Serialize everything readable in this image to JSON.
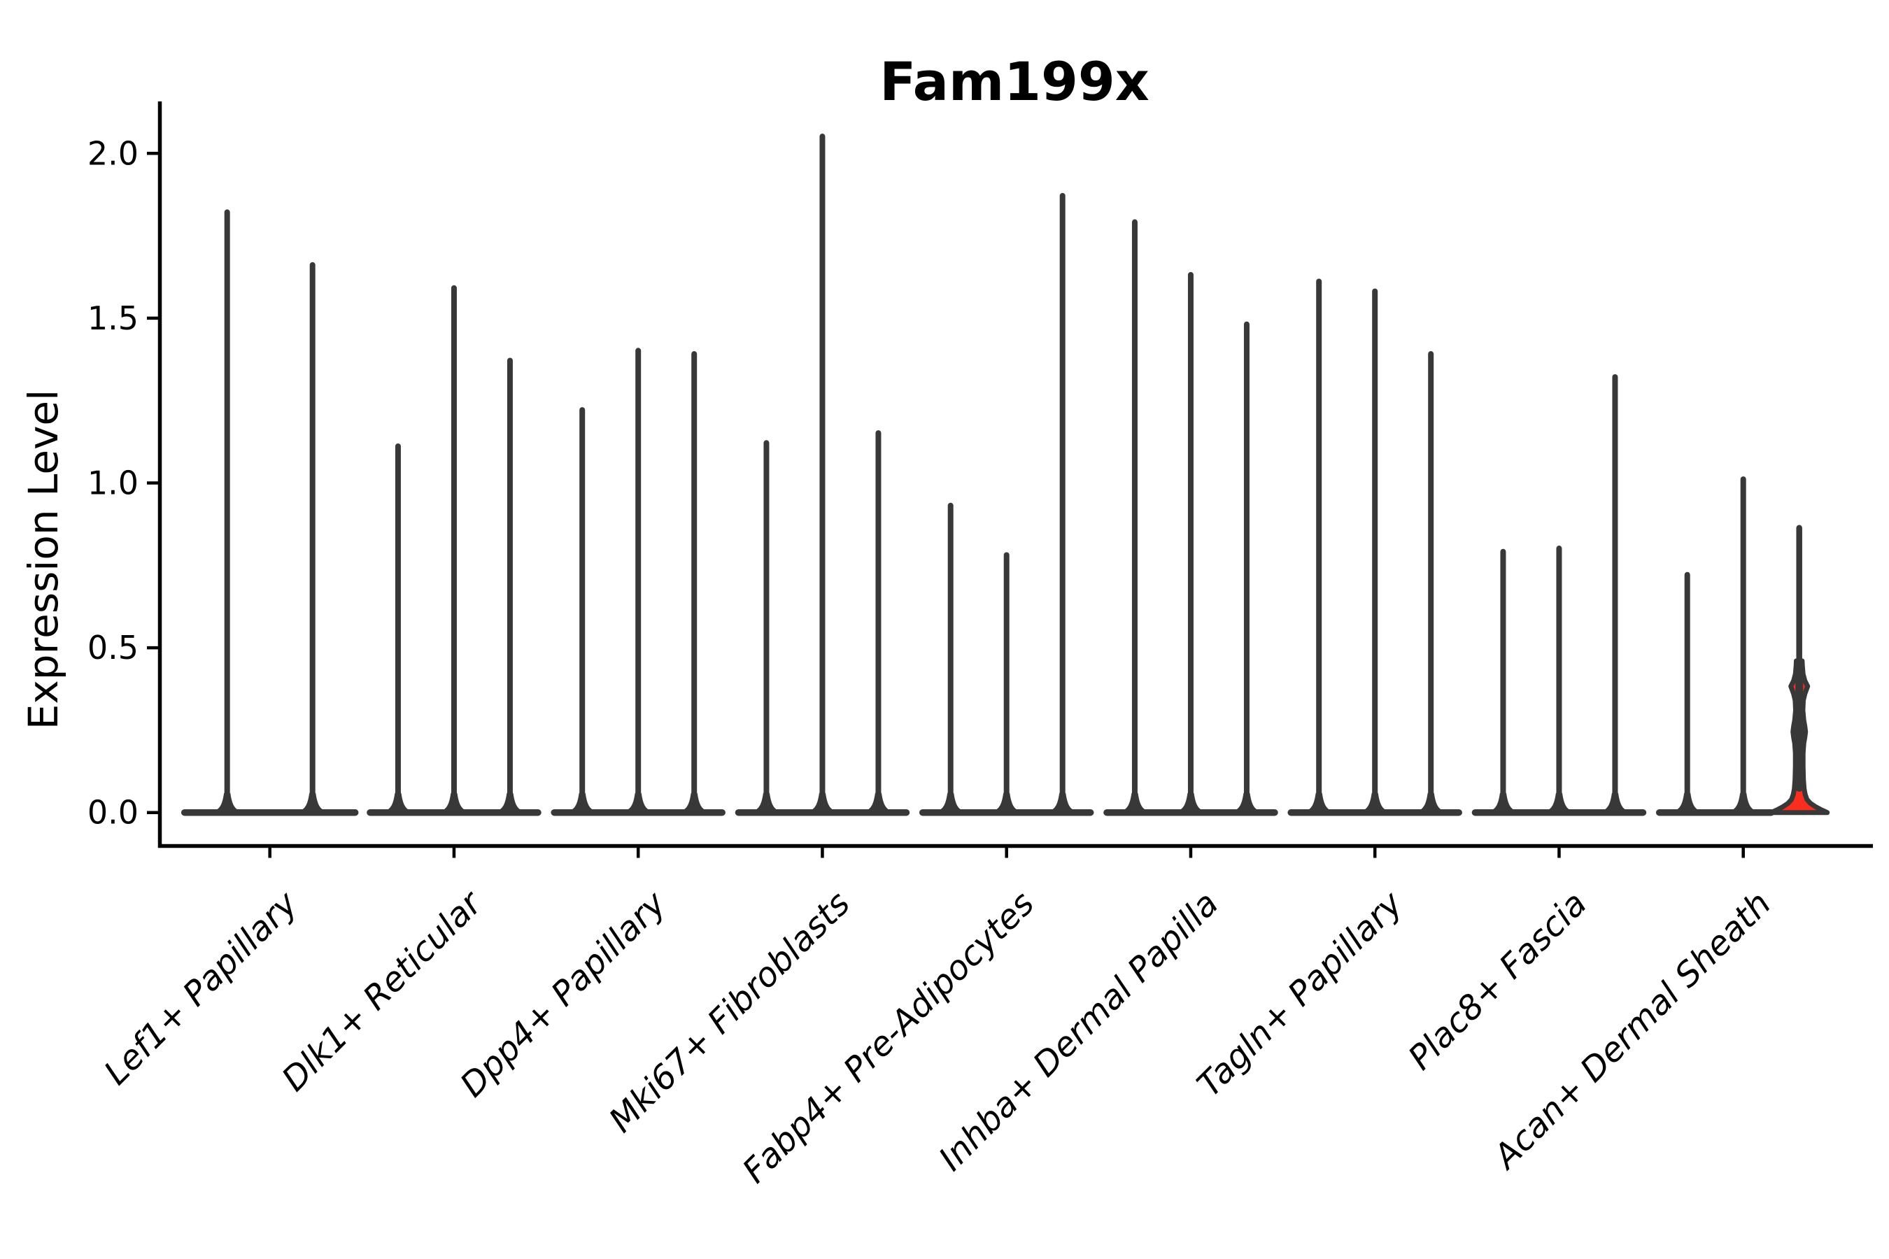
{
  "title": "Fam199x",
  "axes": {
    "ylabel": "Expression Level"
  },
  "chart_data": {
    "type": "violin",
    "title": "Fam199x",
    "xlabel": "",
    "ylabel": "Expression Level",
    "ylim": [
      -0.1,
      2.16
    ],
    "yticks": [
      0.0,
      0.5,
      1.0,
      1.5,
      2.0
    ],
    "grid": false,
    "legend": "none",
    "categories": [
      "Lef1+ Papillary",
      "Dlk1+ Reticular",
      "Dpp4+ Papillary",
      "Mki67+ Fibroblasts",
      "Fabp4+ Pre-Adipocytes",
      "Inhba+ Dermal Papilla",
      "Tagln+ Papillary",
      "Plac8+ Fascia",
      "Acan+ Dermal Sheath"
    ],
    "groups": [
      {
        "category": "Lef1+ Papillary",
        "violins": [
          {
            "peak": 1.83
          },
          {
            "peak": 1.67
          }
        ]
      },
      {
        "category": "Dlk1+ Reticular",
        "violins": [
          {
            "peak": 1.12
          },
          {
            "peak": 1.6
          },
          {
            "peak": 1.38
          }
        ]
      },
      {
        "category": "Dpp4+ Papillary",
        "violins": [
          {
            "peak": 1.23
          },
          {
            "peak": 1.41
          },
          {
            "peak": 1.4
          }
        ]
      },
      {
        "category": "Mki67+ Fibroblasts",
        "violins": [
          {
            "peak": 1.13
          },
          {
            "peak": 2.06
          },
          {
            "peak": 1.16
          }
        ]
      },
      {
        "category": "Fabp4+ Pre-Adipocytes",
        "violins": [
          {
            "peak": 0.94
          },
          {
            "peak": 0.79
          },
          {
            "peak": 1.88
          }
        ]
      },
      {
        "category": "Inhba+ Dermal Papilla",
        "violins": [
          {
            "peak": 1.8
          },
          {
            "peak": 1.64
          },
          {
            "peak": 1.49
          }
        ]
      },
      {
        "category": "Tagln+ Papillary",
        "violins": [
          {
            "peak": 1.62
          },
          {
            "peak": 1.59
          },
          {
            "peak": 1.4
          }
        ]
      },
      {
        "category": "Plac8+ Fascia",
        "violins": [
          {
            "peak": 0.8
          },
          {
            "peak": 0.81
          },
          {
            "peak": 1.33
          }
        ]
      },
      {
        "category": "Acan+ Dermal Sheath",
        "violins": [
          {
            "peak": 0.73
          },
          {
            "peak": 1.02
          },
          {
            "peak": 0.87,
            "highlight": true,
            "bulges": [
              0.245,
              0.383
            ]
          }
        ]
      }
    ],
    "highlight_profile": [
      [
        0.0,
        40.0
      ],
      [
        0.004,
        36.0
      ],
      [
        0.01,
        30.0
      ],
      [
        0.018,
        23.0
      ],
      [
        0.028,
        16.0
      ],
      [
        0.04,
        11.0
      ],
      [
        0.055,
        8.5
      ],
      [
        0.072,
        7.0
      ],
      [
        0.1,
        6.0
      ],
      [
        0.14,
        5.5
      ],
      [
        0.18,
        5.5
      ],
      [
        0.21,
        6.5
      ],
      [
        0.228,
        8.0
      ],
      [
        0.245,
        9.0
      ],
      [
        0.262,
        8.0
      ],
      [
        0.28,
        6.5
      ],
      [
        0.31,
        5.2
      ],
      [
        0.34,
        5.8
      ],
      [
        0.36,
        8.0
      ],
      [
        0.383,
        12.0
      ],
      [
        0.4,
        8.0
      ],
      [
        0.42,
        5.5
      ],
      [
        0.445,
        4.5
      ],
      [
        0.46,
        4.2
      ]
    ],
    "colors": {
      "violin": "#383838",
      "spine": "#000000",
      "text": "#000000",
      "highlight_fill": "#fa2e1e",
      "background": "#ffffff"
    }
  }
}
